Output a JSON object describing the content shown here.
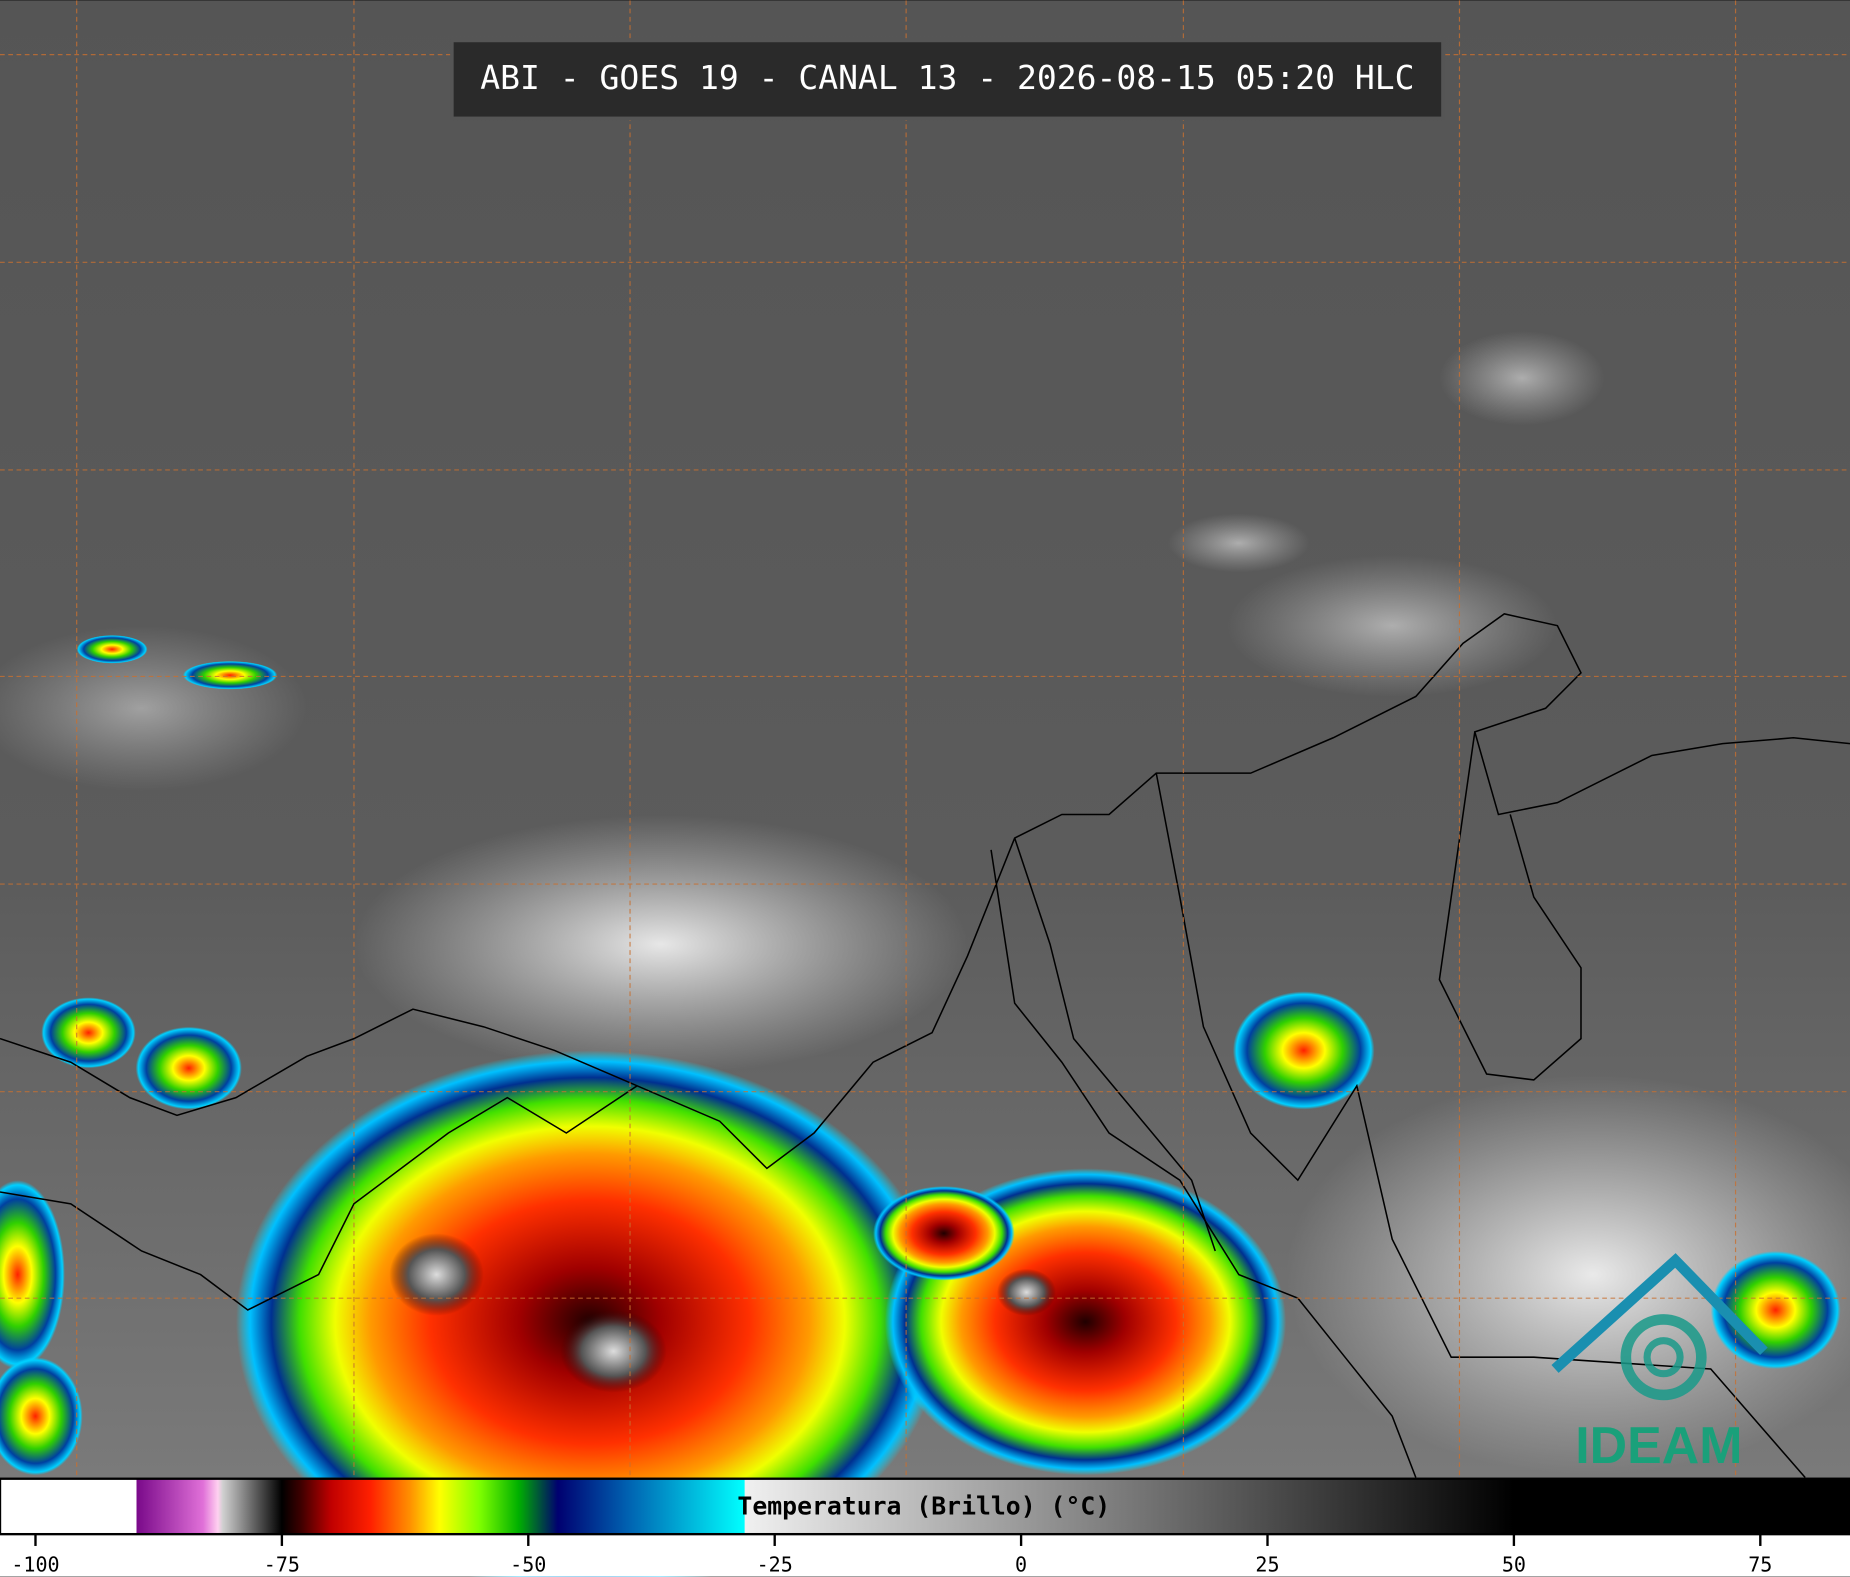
{
  "header": {
    "title": "ABI - GOES 19 - CANAL 13 - 2026-08-15 05:20 HLC"
  },
  "logo": {
    "text": "IDEAM"
  },
  "chart_data": {
    "type": "colorbar",
    "xlabel": "Temperatura (Brillo) (°C)",
    "xlim": [
      -103.6,
      84.1
    ],
    "xticks": [
      -100,
      -75,
      -50,
      -25,
      0,
      25,
      50,
      75
    ],
    "colorscale": [
      {
        "value": -103.6,
        "color": "#ffffff"
      },
      {
        "value": -89.8,
        "color": "#ffffff"
      },
      {
        "value": -89.7,
        "color": "#7a0a8a"
      },
      {
        "value": -83,
        "color": "#e070d8"
      },
      {
        "value": -81.5,
        "color": "#ffd0f0"
      },
      {
        "value": -81,
        "color": "#d0d0d0"
      },
      {
        "value": -75,
        "color": "#000000"
      },
      {
        "value": -73,
        "color": "#400000"
      },
      {
        "value": -70,
        "color": "#c00000"
      },
      {
        "value": -66,
        "color": "#ff2000"
      },
      {
        "value": -62,
        "color": "#ff9000"
      },
      {
        "value": -59,
        "color": "#ffff00"
      },
      {
        "value": -55,
        "color": "#80ff00"
      },
      {
        "value": -51,
        "color": "#00b000"
      },
      {
        "value": -47,
        "color": "#000070"
      },
      {
        "value": -40,
        "color": "#0060b0"
      },
      {
        "value": -28.1,
        "color": "#00ffff"
      },
      {
        "value": -28,
        "color": "#f0f0f0"
      },
      {
        "value": 50,
        "color": "#000000"
      },
      {
        "value": 84.1,
        "color": "#000000"
      }
    ]
  }
}
